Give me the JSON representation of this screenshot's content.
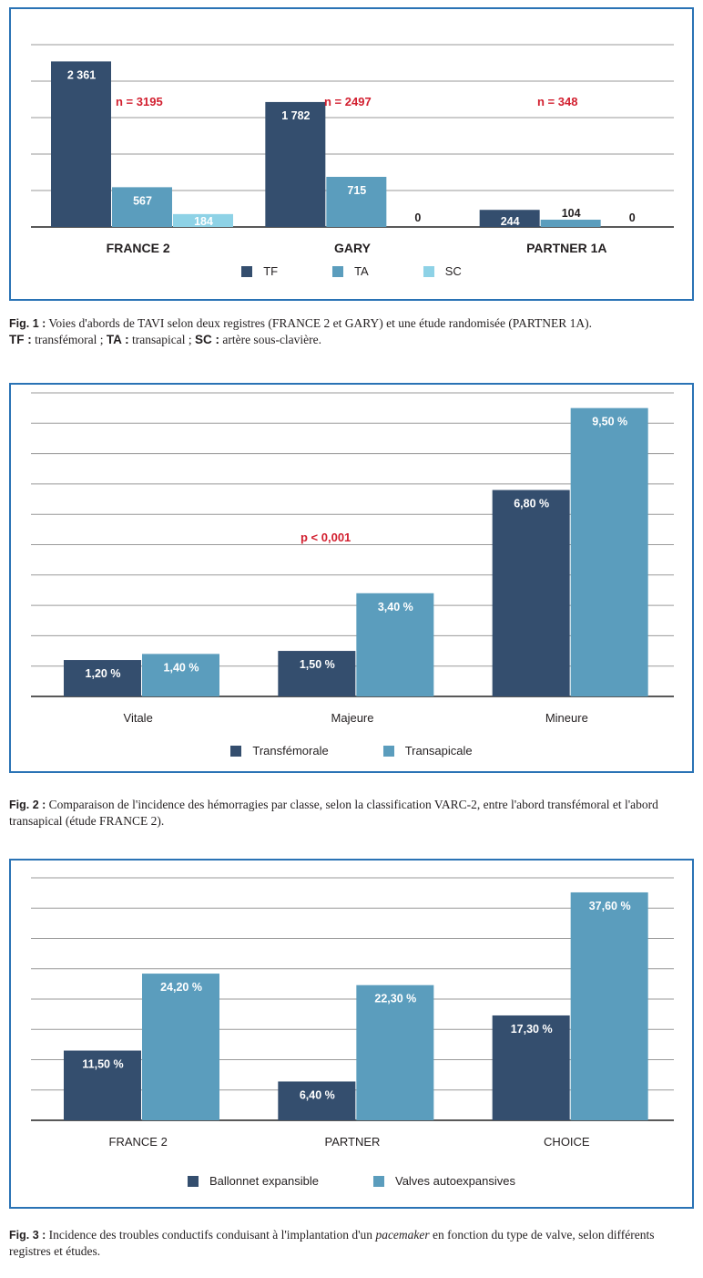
{
  "colors": {
    "dark": "#344e6e",
    "mid": "#5b9dbd",
    "light": "#8ed2e6",
    "red": "#d21f2f",
    "frame": "#2a73b5",
    "grid": "#9a9a9a"
  },
  "fig1": {
    "chart_data": {
      "type": "bar",
      "categories": [
        "FRANCE 2",
        "GARY",
        "PARTNER 1A"
      ],
      "series": [
        {
          "name": "TF",
          "values": [
            2361,
            1782,
            244
          ],
          "labels": [
            "2 361",
            "1 782",
            "244"
          ]
        },
        {
          "name": "TA",
          "values": [
            567,
            715,
            104
          ],
          "labels": [
            "567",
            "715",
            "104"
          ]
        },
        {
          "name": "SC",
          "values": [
            184,
            0,
            0
          ],
          "labels": [
            "184",
            "0",
            "0"
          ]
        }
      ],
      "annotations": [
        "n = 3195",
        "n = 2497",
        "n = 348"
      ],
      "ylim": [
        0,
        2600
      ],
      "grid": true,
      "legend": "bottom"
    },
    "caption": {
      "label": "Fig. 1 :",
      "text1": "Voies d'abords de TAVI selon deux registres (FRANCE 2 et GARY) et une étude randomisée (PARTNER 1A).",
      "k1": "TF :",
      "t1": " transfémoral ; ",
      "k2": "TA :",
      "t2": " transapical ; ",
      "k3": "SC :",
      "t3": " artère sous-clavière."
    }
  },
  "fig2": {
    "chart_data": {
      "type": "bar",
      "categories": [
        "Vitale",
        "Majeure",
        "Mineure"
      ],
      "series": [
        {
          "name": "Transfémorale",
          "values": [
            1.2,
            1.5,
            6.8
          ],
          "labels": [
            "1,20 %",
            "1,50 %",
            "6,80 %"
          ]
        },
        {
          "name": "Transapicale",
          "values": [
            1.4,
            3.4,
            9.5
          ],
          "labels": [
            "1,40 %",
            "3,40 %",
            "9,50 %"
          ]
        }
      ],
      "annotations": [
        "p < 0,001"
      ],
      "ylim": [
        0,
        10
      ],
      "grid": true,
      "legend": "bottom"
    },
    "caption": {
      "label": "Fig. 2 :",
      "text": "Comparaison de l'incidence des hémorragies par classe, selon la classification VARC-2, entre l'abord transfémoral et l'abord transapical (étude FRANCE 2)."
    }
  },
  "fig3": {
    "chart_data": {
      "type": "bar",
      "categories": [
        "FRANCE 2",
        "PARTNER",
        "CHOICE"
      ],
      "series": [
        {
          "name": "Ballonnet expansible",
          "values": [
            11.5,
            6.4,
            17.3
          ],
          "labels": [
            "11,50 %",
            "6,40 %",
            "17,30 %"
          ]
        },
        {
          "name": "Valves autoexpansives",
          "values": [
            24.2,
            22.3,
            37.6
          ],
          "labels": [
            "24,20 %",
            "22,30 %",
            "37,60 %"
          ]
        }
      ],
      "ylim": [
        0,
        40
      ],
      "grid": true,
      "legend": "bottom"
    },
    "caption": {
      "label": "Fig. 3 :",
      "text1": "Incidence des troubles conductifs conduisant à l'implantation d'un ",
      "italic": "pacemaker",
      "text2": " en fonction du type de valve, selon différents registres et études."
    }
  }
}
